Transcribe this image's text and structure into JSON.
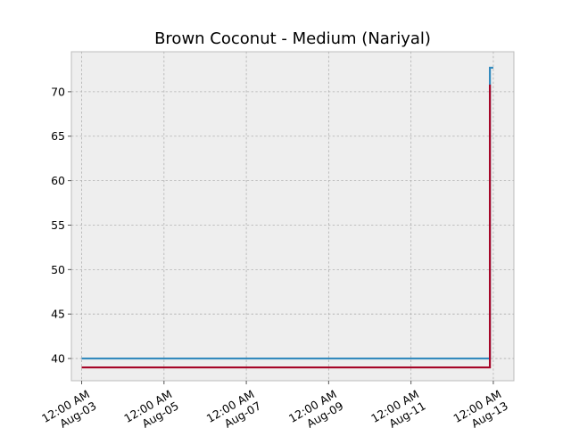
{
  "chart_data": {
    "type": "line",
    "title": "Brown Coconut - Medium (Nariyal)",
    "xlabel": "",
    "ylabel": "",
    "grid": true,
    "legend": "none",
    "x_axis_type": "date",
    "xlim": [
      "2022-08-02T18:00",
      "2022-08-13T12:00"
    ],
    "ylim": [
      37.5,
      74.5
    ],
    "x_ticks": [
      {
        "value": "2022-08-03T00:00",
        "label_line1": "12:00 AM",
        "label_line2": "Aug-03"
      },
      {
        "value": "2022-08-05T00:00",
        "label_line1": "12:00 AM",
        "label_line2": "Aug-05"
      },
      {
        "value": "2022-08-07T00:00",
        "label_line1": "12:00 AM",
        "label_line2": "Aug-07"
      },
      {
        "value": "2022-08-09T00:00",
        "label_line1": "12:00 AM",
        "label_line2": "Aug-09"
      },
      {
        "value": "2022-08-11T00:00",
        "label_line1": "12:00 AM",
        "label_line2": "Aug-11"
      },
      {
        "value": "2022-08-13T00:00",
        "label_line1": "12:00 AM",
        "label_line2": "Aug-13"
      }
    ],
    "y_ticks": [
      40,
      45,
      50,
      55,
      60,
      65,
      70
    ],
    "series": [
      {
        "color": "#348abd",
        "step": true,
        "points": [
          {
            "x": "2022-08-03T00:00",
            "y": 40
          },
          {
            "x": "2022-08-12T22:00",
            "y": 40
          },
          {
            "x": "2022-08-12T22:00",
            "y": 72.7
          },
          {
            "x": "2022-08-13T00:00",
            "y": 72.7
          }
        ]
      },
      {
        "color": "#a60628",
        "step": true,
        "points": [
          {
            "x": "2022-08-03T00:00",
            "y": 39
          },
          {
            "x": "2022-08-12T22:00",
            "y": 39
          },
          {
            "x": "2022-08-12T22:00",
            "y": 70.8
          }
        ]
      }
    ]
  }
}
